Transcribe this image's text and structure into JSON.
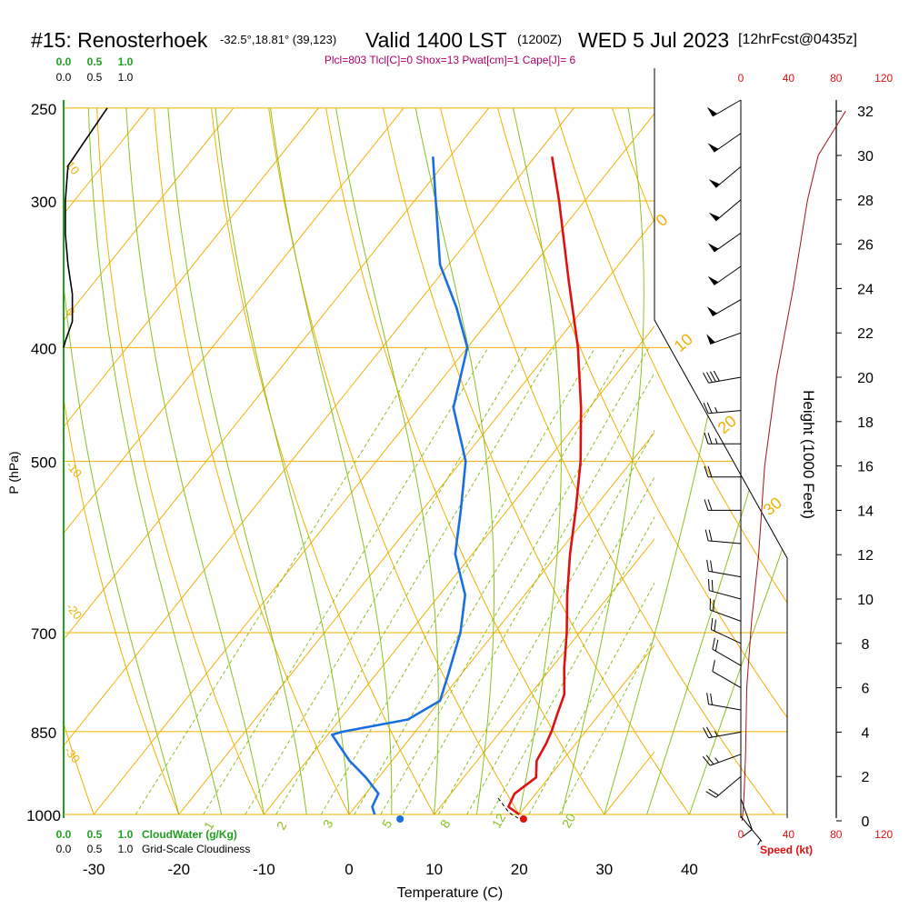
{
  "header": {
    "title": "#15: Renosterhoek",
    "coords": "-32.5°,18.81° (39,123)",
    "valid": "Valid 1400 LST",
    "zulu": "(1200Z)",
    "date": "WED 5 Jul 2023",
    "forecast": "[12hrFcst@0435z]",
    "params": "Plcl=803 Tlcl[C]=0 Shox=13 Pwat[cm]=1 Cape[J]= 6"
  },
  "colors": {
    "temperature": "#e01010",
    "dewpoint": "#1a6fe0",
    "isotherm": "#f0b000",
    "dry_adiabat": "#f0b000",
    "moist_adiabat": "#8cc020",
    "mixing_ratio": "#8cc020",
    "cloud": "#20a020",
    "speed": "#e01010",
    "params": "#b0006a",
    "height": "#a01020"
  },
  "chart_data": {
    "type": "line",
    "title": "#15: Renosterhoek",
    "xlabel": "Temperature (C)",
    "ylabel": "P (hPa)",
    "y2label": "Height (1000 Feet)",
    "xlim": [
      -35,
      45
    ],
    "ylim": [
      1000,
      250
    ],
    "x_ticks": [
      "-30",
      "-20",
      "-10",
      "0",
      "10",
      "20",
      "30",
      "40"
    ],
    "pressure_ticks": [
      "250",
      "300",
      "400",
      "500",
      "700",
      "850",
      "1000"
    ],
    "height_ticks": [
      "0",
      "2",
      "4",
      "6",
      "8",
      "10",
      "12",
      "14",
      "16",
      "18",
      "20",
      "22",
      "24",
      "26",
      "28",
      "30",
      "32"
    ],
    "mixing_ratio_labels": [
      "1",
      "2",
      "3",
      "5",
      "8",
      "12",
      "20"
    ],
    "isotherm_labels": [
      "10",
      "0",
      "-10",
      "-20",
      "-30"
    ],
    "adiabat_labels": [
      "0",
      "10",
      "20",
      "30"
    ],
    "series": [
      {
        "name": "Temperature",
        "points": [
          {
            "p": 1000,
            "t": 20.0
          },
          {
            "p": 985,
            "t": 18.0
          },
          {
            "p": 960,
            "t": 17.5
          },
          {
            "p": 930,
            "t": 18.5
          },
          {
            "p": 900,
            "t": 17.0
          },
          {
            "p": 870,
            "t": 16.5
          },
          {
            "p": 850,
            "t": 16.0
          },
          {
            "p": 820,
            "t": 15.0
          },
          {
            "p": 790,
            "t": 14.0
          },
          {
            "p": 750,
            "t": 11.5
          },
          {
            "p": 700,
            "t": 8.5
          },
          {
            "p": 650,
            "t": 5.0
          },
          {
            "p": 600,
            "t": 1.5
          },
          {
            "p": 550,
            "t": -2.0
          },
          {
            "p": 500,
            "t": -6.0
          },
          {
            "p": 450,
            "t": -11.0
          },
          {
            "p": 400,
            "t": -17.0
          },
          {
            "p": 350,
            "t": -24.5
          },
          {
            "p": 300,
            "t": -33.0
          },
          {
            "p": 275,
            "t": -38.0
          }
        ]
      },
      {
        "name": "Dewpoint",
        "points": [
          {
            "p": 1000,
            "t": 3.0
          },
          {
            "p": 985,
            "t": 2.0
          },
          {
            "p": 960,
            "t": 1.5
          },
          {
            "p": 930,
            "t": -1.5
          },
          {
            "p": 900,
            "t": -5.0
          },
          {
            "p": 870,
            "t": -8.0
          },
          {
            "p": 855,
            "t": -9.5
          },
          {
            "p": 850,
            "t": -8.5
          },
          {
            "p": 830,
            "t": -2.0
          },
          {
            "p": 800,
            "t": 0.0
          },
          {
            "p": 760,
            "t": -1.5
          },
          {
            "p": 700,
            "t": -4.0
          },
          {
            "p": 650,
            "t": -7.0
          },
          {
            "p": 600,
            "t": -12.0
          },
          {
            "p": 550,
            "t": -15.5
          },
          {
            "p": 500,
            "t": -19.5
          },
          {
            "p": 450,
            "t": -26.0
          },
          {
            "p": 400,
            "t": -30.0
          },
          {
            "p": 370,
            "t": -35.0
          },
          {
            "p": 340,
            "t": -41.0
          },
          {
            "p": 300,
            "t": -47.5
          },
          {
            "p": 275,
            "t": -52.0
          }
        ]
      }
    ],
    "surface_markers": [
      {
        "name": "Temperature",
        "p": 1000,
        "t": 20.5
      },
      {
        "name": "Dewpoint",
        "p": 1000,
        "t": 6.0
      }
    ],
    "cloud_water": {
      "label": "CloudWater (g/Kg)",
      "axis_labels": [
        "0.0",
        "0.5",
        "1.0"
      ],
      "values": [
        {
          "p": 1000,
          "v": 0
        },
        {
          "p": 250,
          "v": 0
        }
      ]
    },
    "cloudiness": {
      "label": "Grid-Scale Cloudiness",
      "axis_labels": [
        "0.0",
        "0.5",
        "1.0"
      ],
      "values": [
        {
          "p": 250,
          "v": 0.5
        },
        {
          "p": 280,
          "v": 0.05
        },
        {
          "p": 300,
          "v": 0.02
        },
        {
          "p": 320,
          "v": 0.02
        },
        {
          "p": 340,
          "v": 0.05
        },
        {
          "p": 360,
          "v": 0.1
        },
        {
          "p": 380,
          "v": 0.1
        },
        {
          "p": 395,
          "v": 0.02
        },
        {
          "p": 400,
          "v": 0
        }
      ]
    },
    "wind_speed": {
      "label": "Speed (kt)",
      "axis_labels": [
        "0",
        "40",
        "80",
        "120"
      ],
      "profile": [
        {
          "h": 0,
          "v": 1
        },
        {
          "h": 0.5,
          "v": 2
        },
        {
          "h": 1.5,
          "v": 3
        },
        {
          "h": 3,
          "v": 4
        },
        {
          "h": 6,
          "v": 5
        },
        {
          "h": 9,
          "v": 9
        },
        {
          "h": 12,
          "v": 15
        },
        {
          "h": 16,
          "v": 20
        },
        {
          "h": 20,
          "v": 30
        },
        {
          "h": 24,
          "v": 44
        },
        {
          "h": 28,
          "v": 56
        },
        {
          "h": 30,
          "v": 65
        },
        {
          "h": 32,
          "v": 88
        }
      ]
    },
    "wind_barbs": [
      {
        "h": 0.2,
        "spd": 5,
        "dir": 140
      },
      {
        "h": 1.0,
        "spd": 8,
        "dir": 160
      },
      {
        "h": 2.0,
        "spd": 20,
        "dir": 230
      },
      {
        "h": 3.0,
        "spd": 25,
        "dir": 250
      },
      {
        "h": 4.0,
        "spd": 25,
        "dir": 260
      },
      {
        "h": 5.0,
        "spd": 20,
        "dir": 280
      },
      {
        "h": 6.0,
        "spd": 12,
        "dir": 300
      },
      {
        "h": 7.0,
        "spd": 20,
        "dir": 300
      },
      {
        "h": 8.0,
        "spd": 20,
        "dir": 295
      },
      {
        "h": 9.0,
        "spd": 20,
        "dir": 290
      },
      {
        "h": 10.0,
        "spd": 20,
        "dir": 285
      },
      {
        "h": 11.0,
        "spd": 20,
        "dir": 280
      },
      {
        "h": 12.5,
        "spd": 20,
        "dir": 275
      },
      {
        "h": 14.0,
        "spd": 20,
        "dir": 270
      },
      {
        "h": 15.5,
        "spd": 20,
        "dir": 270
      },
      {
        "h": 17.0,
        "spd": 25,
        "dir": 270
      },
      {
        "h": 18.5,
        "spd": 25,
        "dir": 265
      },
      {
        "h": 20.0,
        "spd": 40,
        "dir": 260
      },
      {
        "h": 22.0,
        "spd": 50,
        "dir": 250
      },
      {
        "h": 23.5,
        "spd": 50,
        "dir": 240
      },
      {
        "h": 25.0,
        "spd": 50,
        "dir": 235
      },
      {
        "h": 26.5,
        "spd": 50,
        "dir": 235
      },
      {
        "h": 28.0,
        "spd": 50,
        "dir": 230
      },
      {
        "h": 29.5,
        "spd": 50,
        "dir": 230
      },
      {
        "h": 31.0,
        "spd": 50,
        "dir": 235
      },
      {
        "h": 32.5,
        "spd": 50,
        "dir": 240
      }
    ]
  }
}
